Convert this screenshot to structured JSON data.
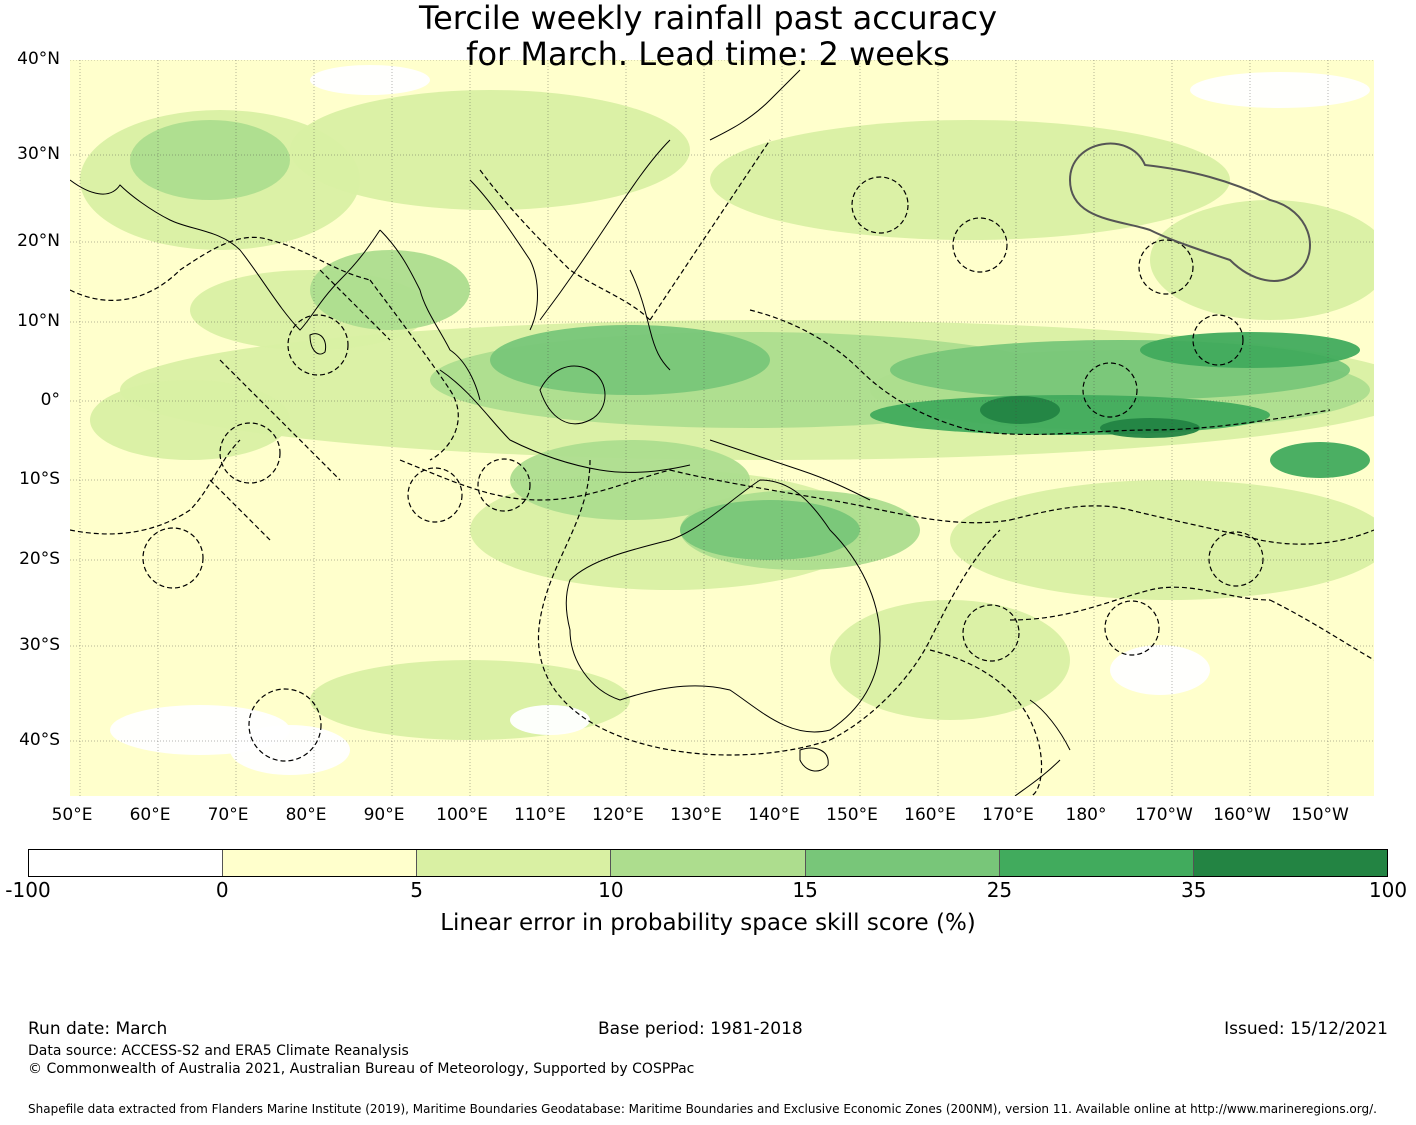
{
  "title_line1": "Tercile weekly rainfall past accuracy",
  "title_line2": "for March. Lead time: 2 weeks",
  "lat_labels": [
    "40°N",
    "30°N",
    "20°N",
    "10°N",
    "0°",
    "10°S",
    "20°S",
    "30°S",
    "40°S"
  ],
  "lon_labels": [
    "50°E",
    "60°E",
    "70°E",
    "80°E",
    "90°E",
    "100°E",
    "110°E",
    "120°E",
    "130°E",
    "140°E",
    "150°E",
    "160°E",
    "170°E",
    "180°",
    "170°W",
    "160°W",
    "150°W"
  ],
  "map": {
    "extent": {
      "lon_min": 50,
      "lon_max": 217,
      "lat_min": -45,
      "lat_max": 40
    },
    "colors": [
      "#ffffff",
      "#ffffcc",
      "#d9f0a3",
      "#addd8e",
      "#78c679",
      "#41ab5d",
      "#238443"
    ],
    "land_color": "#000000",
    "eez_line_color": "#000000",
    "highlight_outline_color": "#555555"
  },
  "colorbar": {
    "ticks": [
      "-100",
      "0",
      "5",
      "10",
      "15",
      "25",
      "35",
      "100"
    ],
    "colors": [
      "#ffffff",
      "#ffffcc",
      "#d9f0a3",
      "#addd8e",
      "#78c679",
      "#41ab5d",
      "#238443"
    ],
    "label": "Linear error in probability space skill score (%)"
  },
  "footer": {
    "run_date": "Run date: March",
    "base_period": "Base period: 1981-2018",
    "issued": "Issued: 15/12/2021",
    "data_source": "Data source: ACCESS-S2 and ERA5 Climate Reanalysis",
    "copyright": "© Commonwealth of Australia 2021, Australian Bureau of Meteorology, Supported by COSPPac",
    "shapefile": "Shapefile data extracted from Flanders Marine Institute (2019), Maritime Boundaries Geodatabase: Maritime Boundaries and Exclusive Economic Zones (200NM), version 11. Available online at http://www.marineregions.org/."
  }
}
